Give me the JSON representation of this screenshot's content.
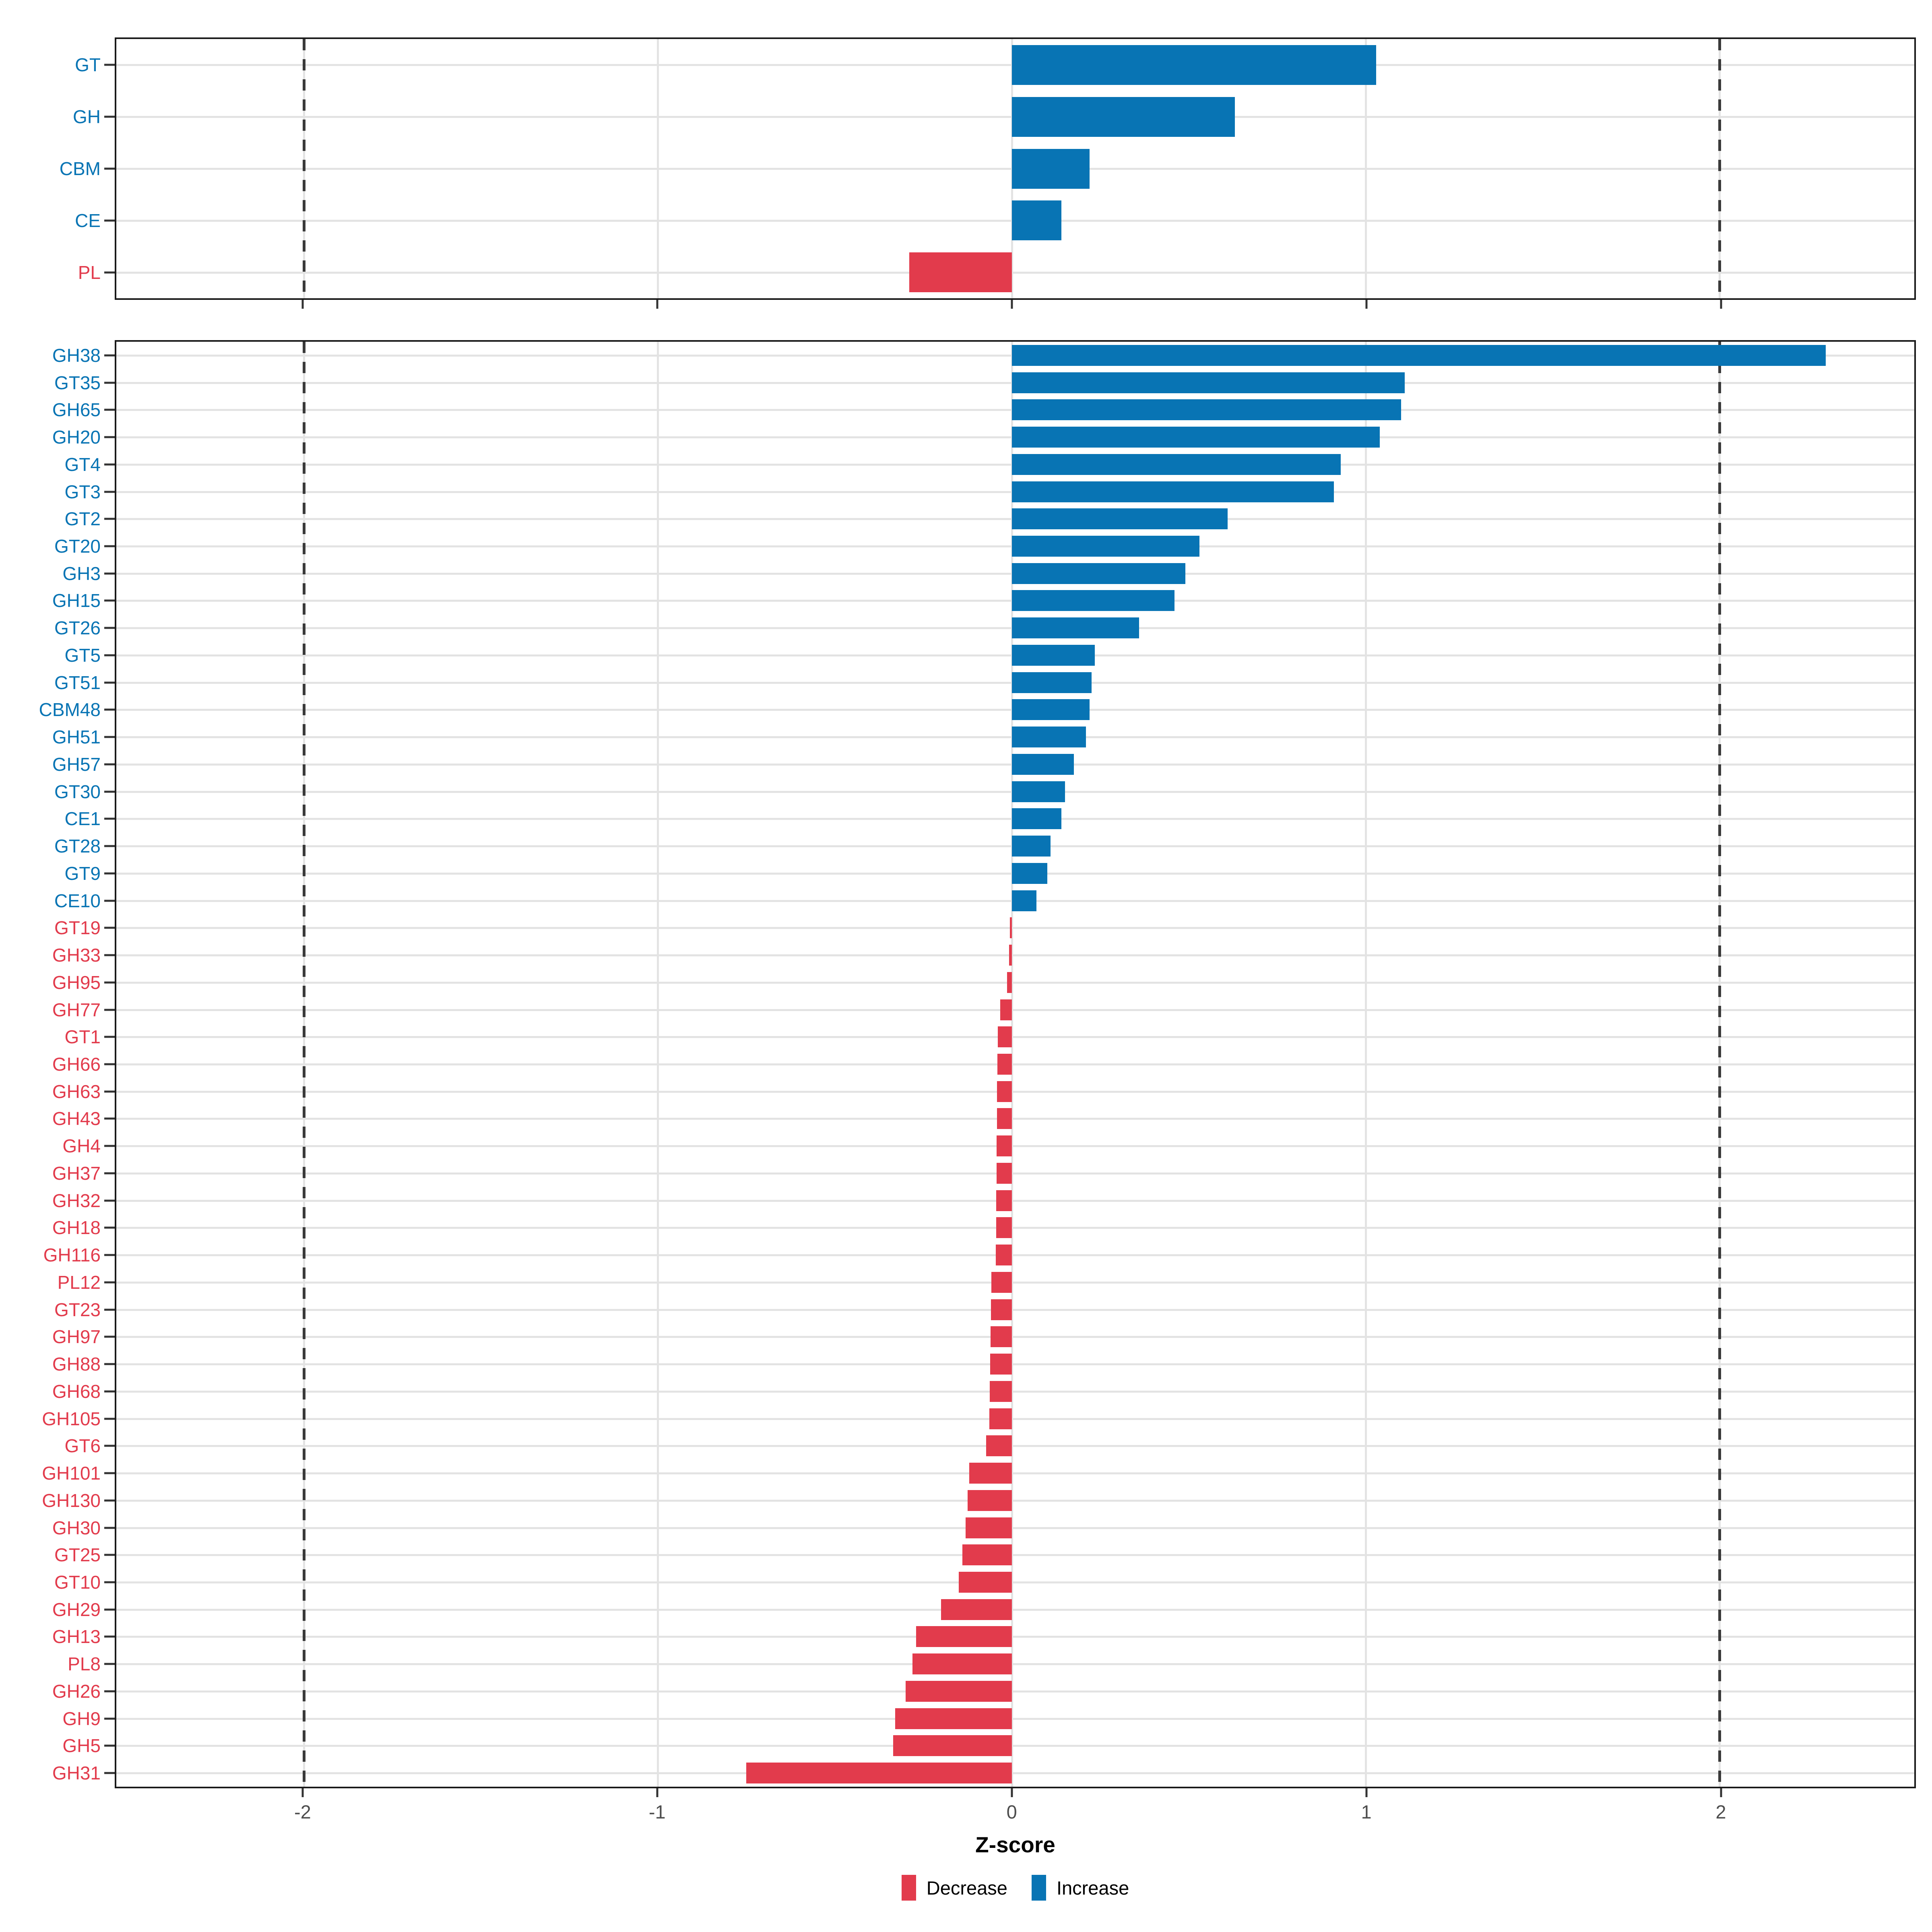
{
  "figure": {
    "background": "#ffffff"
  },
  "colors": {
    "increase": "#0874B4",
    "decrease": "#E23B4C",
    "grid": "#E3E3E3",
    "reference_line": "#3A3A3A",
    "panel_border": "#1A1A1A",
    "axis_text": "#4D4D4D",
    "axis_title": "#000000"
  },
  "axis": {
    "label": "Z-score",
    "tick_labels": [
      "-2",
      "-1",
      "0",
      "1",
      "2"
    ],
    "tick_values": [
      -2,
      -1,
      0,
      1,
      2
    ]
  },
  "legend": {
    "items": [
      {
        "label": "Decrease",
        "color": "#E23B4C"
      },
      {
        "label": "Increase",
        "color": "#0874B4"
      }
    ]
  },
  "chart_data": [
    {
      "id": "cazyme-classes",
      "type": "bar",
      "orientation": "horizontal",
      "xlabel": "Z-score",
      "xlim": [
        -2.53,
        2.55
      ],
      "xticks": [
        -2,
        -1,
        0,
        1,
        2
      ],
      "reference_lines": [
        -2,
        2
      ],
      "grid": true,
      "legend_position": "bottom",
      "categories": [
        "GT",
        "GH",
        "CBM",
        "CE",
        "PL"
      ],
      "values": [
        1.03,
        0.63,
        0.22,
        0.14,
        -0.29
      ]
    },
    {
      "id": "cazyme-families",
      "type": "bar",
      "orientation": "horizontal",
      "xlabel": "Z-score",
      "xlim": [
        -2.53,
        2.55
      ],
      "xticks": [
        -2,
        -1,
        0,
        1,
        2
      ],
      "reference_lines": [
        -2,
        2
      ],
      "grid": true,
      "legend_position": "bottom",
      "categories": [
        "GH38",
        "GT35",
        "GH65",
        "GH20",
        "GT4",
        "GT3",
        "GT2",
        "GT20",
        "GH3",
        "GH15",
        "GT26",
        "GT5",
        "GT51",
        "CBM48",
        "GH51",
        "GH57",
        "GT30",
        "CE1",
        "GT28",
        "GT9",
        "CE10",
        "GT19",
        "GH33",
        "GH95",
        "GH77",
        "GT1",
        "GH66",
        "GH63",
        "GH43",
        "GH4",
        "GH37",
        "GH32",
        "GH18",
        "GH116",
        "PL12",
        "GT23",
        "GH97",
        "GH88",
        "GH68",
        "GH105",
        "GT6",
        "GH101",
        "GH130",
        "GH30",
        "GT25",
        "GT10",
        "GH29",
        "GH13",
        "PL8",
        "GH26",
        "GH9",
        "GH5",
        "GH31"
      ],
      "values": [
        2.3,
        1.11,
        1.1,
        1.04,
        0.93,
        0.91,
        0.61,
        0.53,
        0.49,
        0.46,
        0.36,
        0.235,
        0.225,
        0.22,
        0.21,
        0.175,
        0.15,
        0.14,
        0.11,
        0.1,
        0.07,
        -0.005,
        -0.008,
        -0.013,
        -0.033,
        -0.04,
        -0.041,
        -0.042,
        -0.042,
        -0.043,
        -0.043,
        -0.044,
        -0.044,
        -0.045,
        -0.058,
        -0.059,
        -0.06,
        -0.061,
        -0.062,
        -0.063,
        -0.073,
        -0.12,
        -0.125,
        -0.13,
        -0.14,
        -0.15,
        -0.2,
        -0.27,
        -0.28,
        -0.3,
        -0.33,
        -0.335,
        -0.75
      ]
    }
  ]
}
